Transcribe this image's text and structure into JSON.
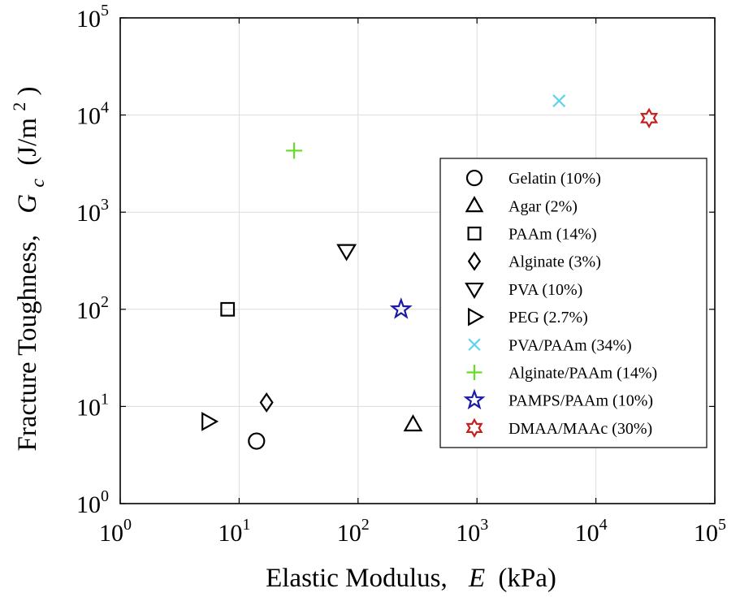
{
  "chart_data": {
    "type": "scatter",
    "title": "",
    "xlabel": {
      "text": "Elastic Modulus,",
      "symbol": "E",
      "unit": "(kPa)"
    },
    "ylabel": {
      "text": "Fracture Toughness,",
      "symbol": "G",
      "subscript": "c",
      "unit_open": "(J/m",
      "unit_sup": "2",
      "unit_close": ")"
    },
    "xscale": "log",
    "yscale": "log",
    "xlim": [
      1,
      100000
    ],
    "ylim": [
      1,
      100000
    ],
    "x_ticks": [
      {
        "base": "10",
        "exp": "0"
      },
      {
        "base": "10",
        "exp": "1"
      },
      {
        "base": "10",
        "exp": "2"
      },
      {
        "base": "10",
        "exp": "3"
      },
      {
        "base": "10",
        "exp": "4"
      },
      {
        "base": "10",
        "exp": "5"
      }
    ],
    "y_ticks": [
      {
        "base": "10",
        "exp": "0"
      },
      {
        "base": "10",
        "exp": "1"
      },
      {
        "base": "10",
        "exp": "2"
      },
      {
        "base": "10",
        "exp": "3"
      },
      {
        "base": "10",
        "exp": "4"
      },
      {
        "base": "10",
        "exp": "5"
      }
    ],
    "grid": true,
    "legend_position": "right-center",
    "series": [
      {
        "name": "Gelatin (10%)",
        "marker": "circle",
        "color": "#000000",
        "x": 14,
        "y": 4.4
      },
      {
        "name": "Agar (2%)",
        "marker": "triangle-up",
        "color": "#000000",
        "x": 290,
        "y": 6.5
      },
      {
        "name": "PAAm (14%)",
        "marker": "square",
        "color": "#000000",
        "x": 8,
        "y": 100
      },
      {
        "name": "Alginate (3%)",
        "marker": "diamond",
        "color": "#000000",
        "x": 17,
        "y": 11
      },
      {
        "name": "PVA (10%)",
        "marker": "triangle-down",
        "color": "#000000",
        "x": 80,
        "y": 400
      },
      {
        "name": "PEG (2.7%)",
        "marker": "triangle-right",
        "color": "#000000",
        "x": 5.5,
        "y": 7
      },
      {
        "name": "PVA/PAAm (34%)",
        "marker": "x",
        "color": "#5fd3e8",
        "x": 4900,
        "y": 14000
      },
      {
        "name": "Alginate/PAAm (14%)",
        "marker": "plus",
        "color": "#66dd22",
        "x": 29,
        "y": 4300
      },
      {
        "name": "PAMPS/PAAm (10%)",
        "marker": "star",
        "color": "#1a1aa6",
        "x": 230,
        "y": 100
      },
      {
        "name": "DMAA/MAAc (30%)",
        "marker": "hexagram",
        "color": "#c42020",
        "x": 28000,
        "y": 9300
      }
    ]
  }
}
